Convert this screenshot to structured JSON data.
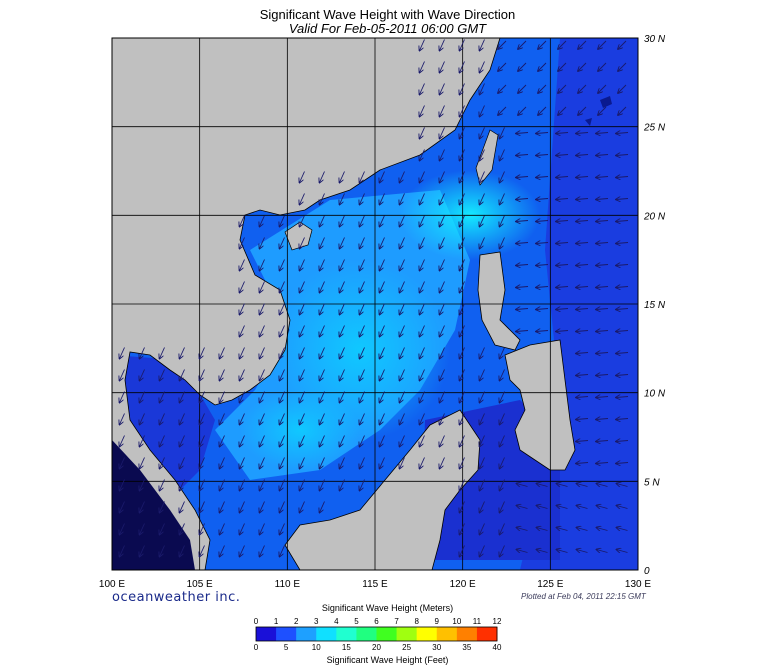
{
  "header": {
    "title": "Significant Wave Height with Wave Direction",
    "subtitle": "Valid For Feb-05-2011 06:00 GMT"
  },
  "map": {
    "lon_labels": [
      "100 E",
      "105 E",
      "110 E",
      "115 E",
      "120 E",
      "125 E",
      "130 E"
    ],
    "lat_labels": [
      "30 N",
      "25 N",
      "20 N",
      "15 N",
      "10 N",
      "5 N",
      "0"
    ],
    "lon_range": [
      100,
      130
    ],
    "lat_range": [
      0,
      30
    ],
    "land_color": "#c0c0c0",
    "grid_color": "#000000"
  },
  "footer": {
    "brand": "oceanweather inc.",
    "plotted": "Plotted at Feb 04, 2011 22:15 GMT"
  },
  "legend": {
    "title_meters": "Significant Wave Height (Meters)",
    "title_feet": "Significant Wave Height (Feet)",
    "meters_ticks": [
      "0",
      "1",
      "2",
      "3",
      "4",
      "5",
      "6",
      "7",
      "8",
      "9",
      "10",
      "11",
      "12"
    ],
    "feet_ticks": [
      "0",
      "5",
      "10",
      "15",
      "20",
      "25",
      "30",
      "35",
      "40"
    ],
    "colors": [
      "#1a10d8",
      "#1e50ff",
      "#1ea0ff",
      "#10e0ff",
      "#20ffd0",
      "#20ff80",
      "#40ff20",
      "#a0ff10",
      "#ffff00",
      "#ffc000",
      "#ff8000",
      "#ff3000"
    ]
  }
}
